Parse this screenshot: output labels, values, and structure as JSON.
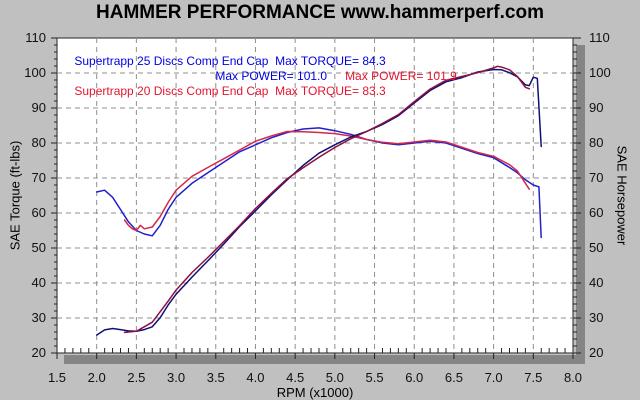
{
  "header": {
    "title": "HAMMER PERFORMANCE www.hammerperf.com"
  },
  "legend": {
    "line1": "Supertrapp 25 Discs Comp End Cap  Max TORQUE= 84.3",
    "line2_blue": "Max POWER= 101.0",
    "line2_red": "Max POWER= 101.9",
    "line3": "Supertrapp 20 Discs Comp End Cap  Max TORQUE= 83.3"
  },
  "axes": {
    "left_label": "SAE Torque (ft-lbs)",
    "right_label": "SAE Horsepower",
    "x_label": "RPM (x1000)",
    "x_tick_labels": [
      "1.5",
      "2.0",
      "2.5",
      "3.0",
      "3.5",
      "4.0",
      "4.5",
      "5.0",
      "5.5",
      "6.0",
      "6.5",
      "7.0",
      "7.5",
      "8.0"
    ],
    "y_tick_labels": [
      "20",
      "30",
      "40",
      "50",
      "60",
      "70",
      "80",
      "90",
      "100",
      "110"
    ]
  },
  "colors": {
    "background": "#c0c0c0",
    "plot_bg": "#ffffff",
    "frame": "#444444",
    "grid": "#8f8f8f",
    "shadow": "#858585",
    "legend_blue": "#0000e0",
    "legend_red": "#e41430",
    "torque_25": "#2020cc",
    "torque_20": "#d42848",
    "power_25": "#101078",
    "power_20": "#8c1040"
  },
  "chart_data": {
    "type": "line",
    "title": "HAMMER PERFORMANCE www.hammerperf.com",
    "xlabel": "RPM (x1000)",
    "ylabel_left": "SAE Torque (ft-lbs)",
    "ylabel_right": "SAE Horsepower",
    "xlim": [
      1.5,
      8.0
    ],
    "ylim": [
      20,
      110
    ],
    "x_major_step": 0.5,
    "x_minor_step": 0.1,
    "y_major_step": 10,
    "y_minor_step": 2,
    "grid": "dashed",
    "legend_position": "top-left-inside",
    "series": [
      {
        "name": "Supertrapp 25 Discs Comp End Cap - Torque",
        "unit": "ft-lbs",
        "color_key": "torque_25",
        "max": 84.3,
        "points": [
          [
            2.0,
            66
          ],
          [
            2.1,
            66.5
          ],
          [
            2.2,
            64.5
          ],
          [
            2.3,
            61
          ],
          [
            2.4,
            57.5
          ],
          [
            2.5,
            55
          ],
          [
            2.6,
            54
          ],
          [
            2.7,
            53.5
          ],
          [
            2.8,
            56.5
          ],
          [
            2.9,
            61
          ],
          [
            3.0,
            64.5
          ],
          [
            3.2,
            68.5
          ],
          [
            3.4,
            71.5
          ],
          [
            3.6,
            74.5
          ],
          [
            3.8,
            77.5
          ],
          [
            4.0,
            79.5
          ],
          [
            4.2,
            81.5
          ],
          [
            4.4,
            83
          ],
          [
            4.6,
            84
          ],
          [
            4.8,
            84.3
          ],
          [
            5.0,
            83.5
          ],
          [
            5.2,
            82.5
          ],
          [
            5.4,
            81
          ],
          [
            5.6,
            80
          ],
          [
            5.8,
            79.5
          ],
          [
            6.0,
            80
          ],
          [
            6.2,
            80.5
          ],
          [
            6.4,
            80
          ],
          [
            6.6,
            78.5
          ],
          [
            6.8,
            77
          ],
          [
            7.0,
            75.8
          ],
          [
            7.2,
            73
          ],
          [
            7.3,
            71.5
          ],
          [
            7.4,
            69.5
          ],
          [
            7.5,
            68
          ],
          [
            7.57,
            67.5
          ],
          [
            7.6,
            53
          ]
        ]
      },
      {
        "name": "Supertrapp 20 Discs Comp End Cap - Torque",
        "unit": "ft-lbs",
        "color_key": "torque_20",
        "max": 83.3,
        "points": [
          [
            2.35,
            58
          ],
          [
            2.4,
            56.5
          ],
          [
            2.45,
            55.5
          ],
          [
            2.5,
            55
          ],
          [
            2.55,
            56.5
          ],
          [
            2.6,
            55.5
          ],
          [
            2.7,
            56
          ],
          [
            2.8,
            59
          ],
          [
            2.9,
            63
          ],
          [
            3.0,
            66.5
          ],
          [
            3.2,
            70.5
          ],
          [
            3.4,
            73
          ],
          [
            3.6,
            75.5
          ],
          [
            3.8,
            78
          ],
          [
            4.0,
            80.5
          ],
          [
            4.2,
            82
          ],
          [
            4.4,
            83.3
          ],
          [
            4.6,
            83.2
          ],
          [
            4.8,
            83
          ],
          [
            5.0,
            82.7
          ],
          [
            5.2,
            82
          ],
          [
            5.4,
            81
          ],
          [
            5.6,
            80.2
          ],
          [
            5.8,
            79.8
          ],
          [
            6.0,
            80.3
          ],
          [
            6.2,
            80.8
          ],
          [
            6.4,
            80.3
          ],
          [
            6.6,
            78.8
          ],
          [
            6.8,
            77.3
          ],
          [
            7.0,
            76.2
          ],
          [
            7.2,
            73.8
          ],
          [
            7.3,
            72
          ],
          [
            7.4,
            68.5
          ],
          [
            7.45,
            66.8
          ]
        ]
      },
      {
        "name": "Supertrapp 25 Discs Comp End Cap - Power",
        "unit": "hp",
        "color_key": "power_25",
        "max": 101.0,
        "points": [
          [
            2.0,
            25.1
          ],
          [
            2.1,
            26.6
          ],
          [
            2.2,
            27
          ],
          [
            2.3,
            26.7
          ],
          [
            2.4,
            26.3
          ],
          [
            2.5,
            26.2
          ],
          [
            2.6,
            26.7
          ],
          [
            2.7,
            27.5
          ],
          [
            2.8,
            30.1
          ],
          [
            2.9,
            33.7
          ],
          [
            3.0,
            36.8
          ],
          [
            3.2,
            41.7
          ],
          [
            3.4,
            46.3
          ],
          [
            3.6,
            51.1
          ],
          [
            3.8,
            56.1
          ],
          [
            4.0,
            60.6
          ],
          [
            4.2,
            65.2
          ],
          [
            4.4,
            69.5
          ],
          [
            4.6,
            73.6
          ],
          [
            4.8,
            77.1
          ],
          [
            5.0,
            79.5
          ],
          [
            5.2,
            81.7
          ],
          [
            5.4,
            83.3
          ],
          [
            5.6,
            85.3
          ],
          [
            5.8,
            87.8
          ],
          [
            6.0,
            91.4
          ],
          [
            6.2,
            95
          ],
          [
            6.4,
            97.5
          ],
          [
            6.6,
            98.7
          ],
          [
            6.8,
            100.3
          ],
          [
            7.0,
            101
          ],
          [
            7.1,
            100.9
          ],
          [
            7.2,
            100.1
          ],
          [
            7.3,
            98.9
          ],
          [
            7.4,
            96.6
          ],
          [
            7.45,
            96.4
          ],
          [
            7.5,
            98.8
          ],
          [
            7.55,
            98.5
          ],
          [
            7.6,
            79
          ]
        ]
      },
      {
        "name": "Supertrapp 20 Discs Comp End Cap - Power",
        "unit": "hp",
        "color_key": "power_20",
        "max": 101.9,
        "points": [
          [
            2.35,
            25.9
          ],
          [
            2.5,
            26.2
          ],
          [
            2.7,
            28.8
          ],
          [
            2.9,
            34.8
          ],
          [
            3.0,
            38
          ],
          [
            3.2,
            43
          ],
          [
            3.4,
            47.3
          ],
          [
            3.6,
            51.8
          ],
          [
            3.8,
            56.4
          ],
          [
            4.0,
            61.3
          ],
          [
            4.2,
            65.6
          ],
          [
            4.4,
            69.8
          ],
          [
            4.6,
            72.9
          ],
          [
            4.8,
            75.9
          ],
          [
            5.0,
            78.7
          ],
          [
            5.2,
            81.2
          ],
          [
            5.4,
            83.3
          ],
          [
            5.6,
            85.6
          ],
          [
            5.8,
            88.1
          ],
          [
            6.0,
            91.8
          ],
          [
            6.2,
            95.4
          ],
          [
            6.4,
            97.9
          ],
          [
            6.6,
            99
          ],
          [
            6.8,
            100.1
          ],
          [
            7.0,
            101.5
          ],
          [
            7.05,
            101.9
          ],
          [
            7.1,
            101.7
          ],
          [
            7.2,
            100.9
          ],
          [
            7.3,
            99
          ],
          [
            7.4,
            95.9
          ],
          [
            7.45,
            95.5
          ]
        ]
      }
    ]
  }
}
